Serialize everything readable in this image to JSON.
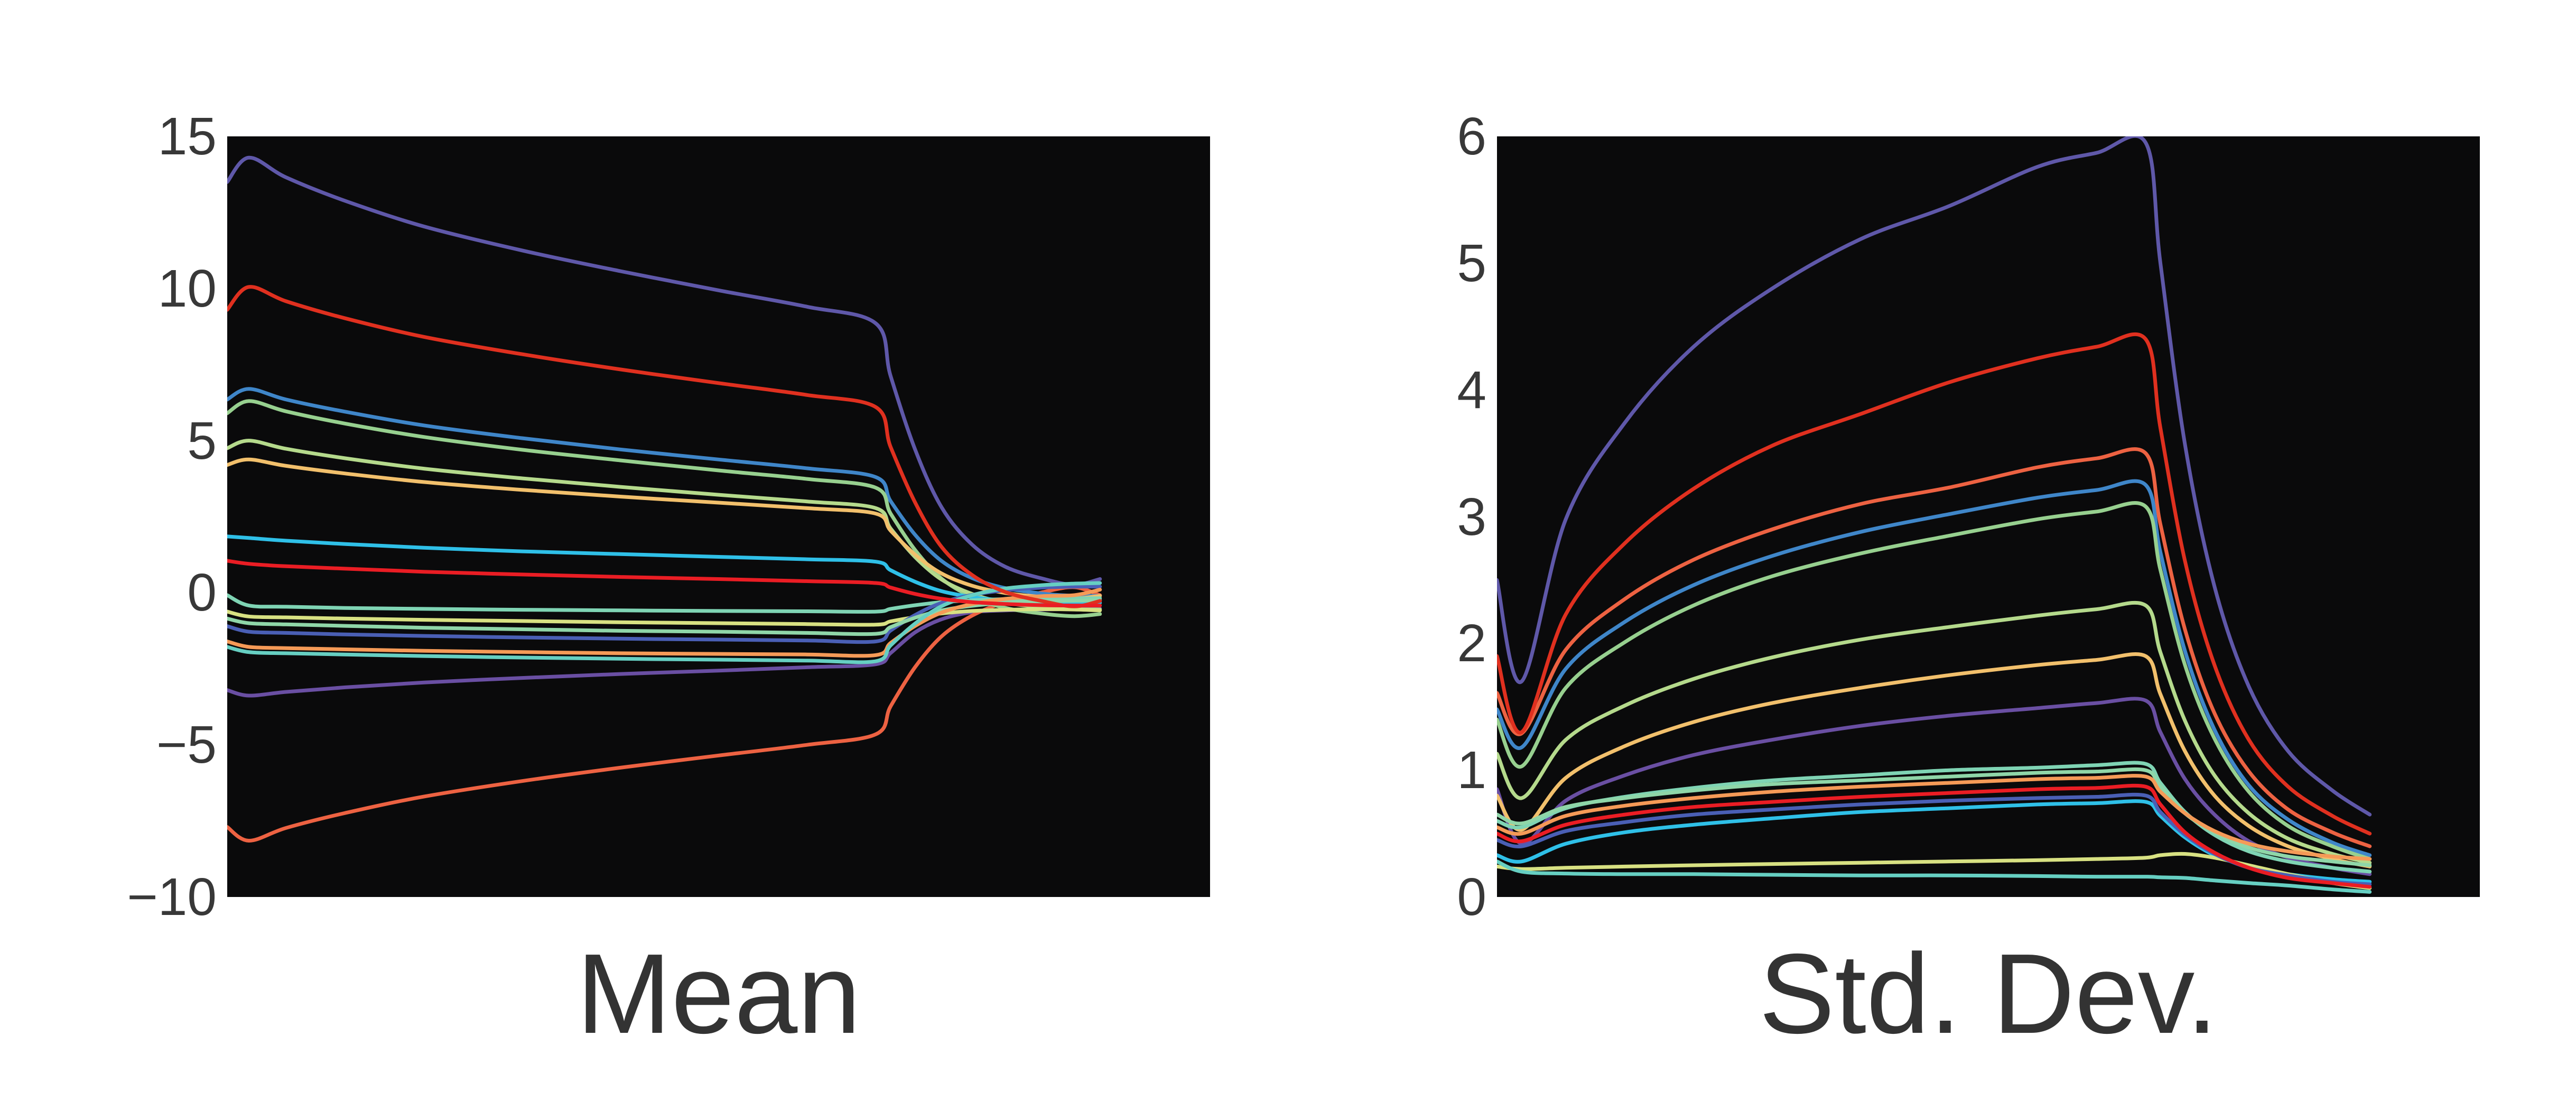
{
  "figure": {
    "background": "#ffffff",
    "plot_background": "#0a0a0b",
    "text_color": "#383838",
    "line_width": 7
  },
  "chart_data": [
    {
      "type": "line",
      "title": "Mean",
      "ylim": [
        -10,
        15
      ],
      "yticks": [
        {
          "label": "15",
          "value": 15
        },
        {
          "label": "10",
          "value": 10
        },
        {
          "label": "5",
          "value": 5
        },
        {
          "label": "0",
          "value": 0
        },
        {
          "label": "−5",
          "value": -5
        },
        {
          "label": "−10",
          "value": -10
        }
      ],
      "grid": false,
      "legend": "none",
      "x_axis_visible": false,
      "x_data_extent": 0.888,
      "x": [
        0,
        0.022,
        0.06,
        0.12,
        0.2,
        0.3,
        0.4,
        0.5,
        0.59,
        0.66,
        0.675,
        0.7,
        0.727,
        0.758,
        0.792,
        0.83,
        0.862,
        0.888
      ],
      "series": [
        {
          "name": "slate-purple",
          "color": "#5f58a9",
          "values": [
            13.5,
            14.3,
            13.65,
            12.88,
            12.04,
            11.25,
            10.57,
            9.94,
            9.4,
            8.85,
            7.12,
            4.7,
            2.8,
            1.58,
            0.85,
            0.46,
            0.26,
            0.45
          ]
        },
        {
          "name": "dark-purple",
          "color": "#6a4fa3",
          "values": [
            -3.2,
            -3.38,
            -3.26,
            -3.11,
            -2.95,
            -2.8,
            -2.67,
            -2.56,
            -2.45,
            -2.35,
            -1.98,
            -1.3,
            -0.87,
            -0.64,
            -0.58,
            -0.55,
            -0.53,
            -0.52
          ]
        },
        {
          "name": "orange-red",
          "color": "#ed6242",
          "values": [
            -7.7,
            -8.15,
            -7.73,
            -7.24,
            -6.7,
            -6.19,
            -5.75,
            -5.35,
            -5.0,
            -4.65,
            -3.73,
            -2.44,
            -1.43,
            -0.75,
            -0.3,
            0.02,
            0.18,
            -0.08
          ]
        },
        {
          "name": "steel-blue",
          "color": "#3f86c9",
          "values": [
            6.35,
            6.7,
            6.35,
            5.95,
            5.5,
            5.08,
            4.71,
            4.38,
            4.09,
            3.8,
            3.01,
            1.9,
            1.04,
            0.48,
            0.15,
            -0.03,
            -0.1,
            -0.1
          ]
        },
        {
          "name": "light-green",
          "color": "#97d08f",
          "values": [
            5.9,
            6.3,
            5.96,
            5.56,
            5.12,
            4.7,
            4.35,
            4.02,
            3.74,
            3.45,
            2.6,
            1.4,
            0.46,
            -0.14,
            -0.5,
            -0.69,
            -0.77,
            -0.7
          ]
        },
        {
          "name": "pale-green",
          "color": "#b5da8c",
          "values": [
            4.75,
            5.0,
            4.73,
            4.42,
            4.08,
            3.76,
            3.48,
            3.22,
            3.0,
            2.78,
            2.11,
            1.17,
            0.43,
            -0.04,
            -0.33,
            -0.48,
            -0.54,
            -0.55
          ]
        },
        {
          "name": "sandy",
          "color": "#f2c06c",
          "values": [
            4.2,
            4.38,
            4.17,
            3.92,
            3.64,
            3.38,
            3.16,
            2.96,
            2.78,
            2.6,
            2.04,
            1.25,
            0.63,
            0.23,
            -0.01,
            -0.14,
            -0.19,
            -0.1
          ]
        },
        {
          "name": "cyan",
          "color": "#2fc0e8",
          "values": [
            1.85,
            1.8,
            1.71,
            1.6,
            1.48,
            1.36,
            1.27,
            1.18,
            1.1,
            1.02,
            0.74,
            0.36,
            0.05,
            -0.14,
            -0.26,
            -0.32,
            -0.34,
            -0.33
          ]
        },
        {
          "name": "seafoam",
          "color": "#7fd4b4",
          "values": [
            -0.08,
            -0.42,
            -0.46,
            -0.5,
            -0.53,
            -0.56,
            -0.58,
            -0.6,
            -0.61,
            -0.62,
            -0.53,
            -0.41,
            -0.31,
            -0.25,
            -0.21,
            -0.19,
            -0.185,
            -0.18
          ]
        },
        {
          "name": "yellow-green",
          "color": "#d8e182",
          "values": [
            -0.62,
            -0.78,
            -0.81,
            -0.85,
            -0.89,
            -0.93,
            -0.97,
            -1.0,
            -1.03,
            -1.05,
            -0.94,
            -0.8,
            -0.68,
            -0.6,
            -0.56,
            -0.54,
            -0.55,
            -0.58
          ]
        },
        {
          "name": "royal-blue",
          "color": "#4a5fb5",
          "values": [
            -1.1,
            -1.28,
            -1.32,
            -1.37,
            -1.42,
            -1.47,
            -1.51,
            -1.54,
            -1.57,
            -1.6,
            -1.24,
            -0.73,
            -0.33,
            -0.07,
            0.08,
            0.17,
            0.2,
            0.2
          ]
        },
        {
          "name": "seafoam-green",
          "color": "#8fd6a8",
          "values": [
            -0.85,
            -1.0,
            -1.04,
            -1.09,
            -1.15,
            -1.2,
            -1.25,
            -1.28,
            -1.32,
            -1.35,
            -1.13,
            -0.82,
            -0.58,
            -0.43,
            -0.33,
            -0.28,
            -0.26,
            -0.25
          ]
        },
        {
          "name": "orange",
          "color": "#f59a57",
          "values": [
            -1.6,
            -1.78,
            -1.82,
            -1.86,
            -1.91,
            -1.95,
            -1.99,
            -2.01,
            -2.03,
            -2.05,
            -1.65,
            -1.09,
            -0.65,
            -0.37,
            -0.2,
            -0.11,
            -0.08,
            0.1
          ]
        },
        {
          "name": "teal",
          "color": "#66cfc2",
          "values": [
            -1.78,
            -1.95,
            -1.99,
            -2.03,
            -2.08,
            -2.13,
            -2.17,
            -2.2,
            -2.23,
            -2.25,
            -1.73,
            -1.01,
            -0.44,
            -0.08,
            0.14,
            0.25,
            0.3,
            0.32
          ]
        },
        {
          "name": "red",
          "color": "#e0301f",
          "values": [
            9.3,
            10.05,
            9.58,
            9.02,
            8.41,
            7.84,
            7.34,
            6.89,
            6.5,
            6.1,
            4.79,
            2.96,
            1.5,
            0.58,
            0.02,
            -0.28,
            -0.45,
            -0.27
          ]
        },
        {
          "name": "bright-red",
          "color": "#ea1d24",
          "values": [
            1.05,
            0.95,
            0.87,
            0.79,
            0.69,
            0.6,
            0.52,
            0.45,
            0.38,
            0.32,
            0.17,
            -0.04,
            -0.2,
            -0.31,
            -0.37,
            -0.41,
            -0.42,
            -0.42
          ]
        }
      ]
    },
    {
      "type": "line",
      "title": "Std. Dev.",
      "ylim": [
        0,
        6
      ],
      "yticks": [
        {
          "label": "6",
          "value": 6
        },
        {
          "label": "5",
          "value": 5
        },
        {
          "label": "4",
          "value": 4
        },
        {
          "label": "3",
          "value": 3
        },
        {
          "label": "2",
          "value": 2
        },
        {
          "label": "1",
          "value": 1
        },
        {
          "label": "0",
          "value": 0
        }
      ],
      "grid": false,
      "legend": "none",
      "x_axis_visible": false,
      "x_data_extent": 0.888,
      "x": [
        0,
        0.025,
        0.07,
        0.13,
        0.2,
        0.28,
        0.37,
        0.46,
        0.55,
        0.61,
        0.66,
        0.675,
        0.7,
        0.73,
        0.765,
        0.805,
        0.85,
        0.888
      ],
      "series": [
        {
          "name": "slate-purple",
          "color": "#5f58a9",
          "values": [
            2.5,
            1.7,
            2.98,
            3.74,
            4.34,
            4.8,
            5.19,
            5.45,
            5.76,
            5.87,
            5.95,
            5.0,
            3.57,
            2.45,
            1.66,
            1.15,
            0.84,
            0.65
          ]
        },
        {
          "name": "dark-purple",
          "color": "#6a4fa3",
          "values": [
            0.85,
            0.42,
            0.76,
            0.96,
            1.12,
            1.24,
            1.35,
            1.43,
            1.49,
            1.53,
            1.55,
            1.3,
            0.93,
            0.65,
            0.44,
            0.31,
            0.23,
            0.18
          ]
        },
        {
          "name": "orange-red",
          "color": "#ed6242",
          "values": [
            1.61,
            1.29,
            1.95,
            2.35,
            2.66,
            2.9,
            3.1,
            3.23,
            3.39,
            3.46,
            3.5,
            2.94,
            2.11,
            1.45,
            0.99,
            0.69,
            0.51,
            0.4
          ]
        },
        {
          "name": "steel-blue",
          "color": "#3f86c9",
          "values": [
            1.48,
            1.18,
            1.8,
            2.17,
            2.46,
            2.69,
            2.88,
            3.02,
            3.15,
            3.21,
            3.25,
            2.72,
            1.94,
            1.32,
            0.88,
            0.61,
            0.43,
            0.33
          ]
        },
        {
          "name": "light-green",
          "color": "#97d08f",
          "values": [
            1.4,
            1.03,
            1.65,
            2.01,
            2.3,
            2.53,
            2.71,
            2.85,
            2.98,
            3.04,
            3.08,
            2.58,
            1.83,
            1.25,
            0.83,
            0.56,
            0.4,
            0.3
          ]
        },
        {
          "name": "pale-green",
          "color": "#b5da8c",
          "values": [
            1.13,
            0.78,
            1.24,
            1.51,
            1.72,
            1.89,
            2.03,
            2.13,
            2.22,
            2.27,
            2.3,
            1.93,
            1.39,
            0.96,
            0.66,
            0.46,
            0.34,
            0.27
          ]
        },
        {
          "name": "sandy",
          "color": "#f2c06c",
          "values": [
            0.8,
            0.53,
            0.94,
            1.19,
            1.38,
            1.53,
            1.65,
            1.75,
            1.83,
            1.87,
            1.9,
            1.6,
            1.15,
            0.8,
            0.56,
            0.4,
            0.3,
            0.24
          ]
        },
        {
          "name": "cyan",
          "color": "#2fc0e8",
          "values": [
            0.33,
            0.28,
            0.42,
            0.51,
            0.57,
            0.62,
            0.67,
            0.7,
            0.73,
            0.74,
            0.75,
            0.64,
            0.47,
            0.33,
            0.24,
            0.18,
            0.14,
            0.12
          ]
        },
        {
          "name": "seafoam",
          "color": "#7fd4b4",
          "values": [
            0.6,
            0.55,
            0.7,
            0.79,
            0.86,
            0.92,
            0.96,
            1.0,
            1.02,
            1.04,
            1.05,
            0.9,
            0.67,
            0.49,
            0.36,
            0.28,
            0.23,
            0.2
          ]
        },
        {
          "name": "yellow-green",
          "color": "#d8e182",
          "values": [
            0.24,
            0.22,
            0.23,
            0.24,
            0.25,
            0.26,
            0.27,
            0.28,
            0.29,
            0.3,
            0.31,
            0.33,
            0.34,
            0.31,
            0.25,
            0.18,
            0.11,
            0.07
          ]
        },
        {
          "name": "royal-blue",
          "color": "#4a5fb5",
          "values": [
            0.45,
            0.4,
            0.52,
            0.59,
            0.65,
            0.69,
            0.73,
            0.76,
            0.78,
            0.79,
            0.8,
            0.67,
            0.49,
            0.34,
            0.23,
            0.17,
            0.12,
            0.1
          ]
        },
        {
          "name": "seafoam-green",
          "color": "#8fd6a8",
          "values": [
            0.65,
            0.58,
            0.71,
            0.78,
            0.84,
            0.89,
            0.92,
            0.95,
            0.98,
            0.99,
            1.0,
            0.87,
            0.66,
            0.51,
            0.39,
            0.32,
            0.28,
            0.25
          ]
        },
        {
          "name": "orange",
          "color": "#f59a57",
          "values": [
            0.55,
            0.5,
            0.64,
            0.72,
            0.78,
            0.83,
            0.87,
            0.9,
            0.93,
            0.94,
            0.95,
            0.83,
            0.66,
            0.52,
            0.42,
            0.36,
            0.32,
            0.3
          ]
        },
        {
          "name": "teal",
          "color": "#66cfc2",
          "values": [
            0.28,
            0.2,
            0.185,
            0.18,
            0.18,
            0.175,
            0.17,
            0.17,
            0.165,
            0.16,
            0.16,
            0.155,
            0.15,
            0.13,
            0.11,
            0.09,
            0.06,
            0.04
          ]
        },
        {
          "name": "red",
          "color": "#e0301f",
          "values": [
            1.9,
            1.3,
            2.23,
            2.79,
            3.22,
            3.56,
            3.81,
            4.06,
            4.25,
            4.34,
            4.4,
            3.7,
            2.65,
            1.83,
            1.24,
            0.87,
            0.64,
            0.5
          ]
        },
        {
          "name": "bright-red",
          "color": "#ea1d24",
          "values": [
            0.5,
            0.44,
            0.57,
            0.65,
            0.71,
            0.75,
            0.79,
            0.82,
            0.85,
            0.86,
            0.87,
            0.73,
            0.51,
            0.35,
            0.23,
            0.15,
            0.11,
            0.08
          ]
        }
      ]
    }
  ]
}
